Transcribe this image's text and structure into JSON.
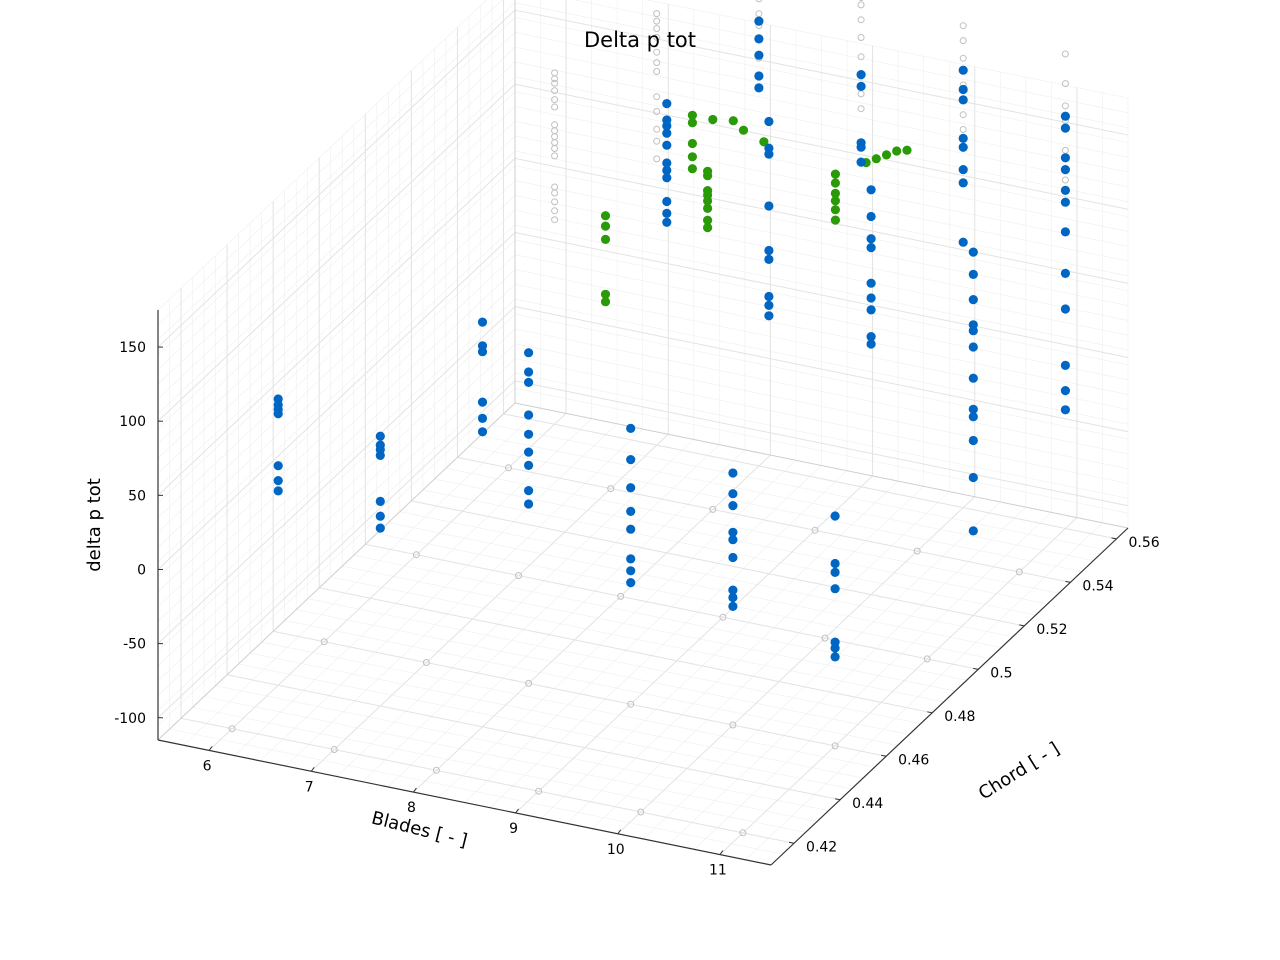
{
  "chart_data": {
    "type": "scatter3d",
    "title": "Delta p tot",
    "xlabel": "Blades [ - ]",
    "ylabel": "Chord [ - ]",
    "zlabel": "delta p tot",
    "xlim": [
      5.5,
      11.5
    ],
    "ylim": [
      0.41,
      0.565
    ],
    "zlim": [
      -115,
      175
    ],
    "x_ticks": [
      "6",
      "7",
      "8",
      "9",
      "10",
      "11"
    ],
    "y_ticks": [
      "0.42",
      "0.44",
      "0.46",
      "0.48",
      "0.5",
      "0.52",
      "0.54",
      "0.56"
    ],
    "z_ticks": [
      "-100",
      "-50",
      "0",
      "50",
      "100",
      "150"
    ],
    "grid": true,
    "colors": {
      "blue": "#0066c4",
      "green": "#2a9a08",
      "gray": "#c0c0c0",
      "gridline": "#e3e3e3"
    },
    "series": [
      {
        "color": "blue",
        "points": [
          [
            6,
            0.44,
            78
          ],
          [
            6,
            0.44,
            74
          ],
          [
            6,
            0.44,
            71
          ],
          [
            6,
            0.44,
            68
          ],
          [
            6,
            0.44,
            33
          ],
          [
            6,
            0.44,
            23
          ],
          [
            6,
            0.44,
            16
          ],
          [
            7,
            0.44,
            67
          ],
          [
            7,
            0.44,
            61
          ],
          [
            7,
            0.44,
            58
          ],
          [
            7,
            0.44,
            54
          ],
          [
            7,
            0.44,
            23
          ],
          [
            7,
            0.44,
            13
          ],
          [
            7,
            0.44,
            5
          ],
          [
            8,
            0.44,
            158
          ],
          [
            8,
            0.44,
            142
          ],
          [
            8,
            0.44,
            138
          ],
          [
            8,
            0.44,
            104
          ],
          [
            8,
            0.44,
            93
          ],
          [
            8,
            0.44,
            84
          ],
          [
            8,
            0.46,
            108
          ],
          [
            8,
            0.46,
            95
          ],
          [
            8,
            0.46,
            88
          ],
          [
            8,
            0.46,
            66
          ],
          [
            8,
            0.46,
            53
          ],
          [
            8,
            0.46,
            41
          ],
          [
            8,
            0.46,
            32
          ],
          [
            8,
            0.46,
            15
          ],
          [
            8,
            0.46,
            6
          ],
          [
            9,
            0.46,
            71
          ],
          [
            9,
            0.46,
            50
          ],
          [
            9,
            0.46,
            31
          ],
          [
            9,
            0.46,
            15
          ],
          [
            9,
            0.46,
            3
          ],
          [
            9,
            0.46,
            -17
          ],
          [
            9,
            0.46,
            -25
          ],
          [
            9,
            0.46,
            -33
          ],
          [
            10,
            0.46,
            55
          ],
          [
            10,
            0.46,
            41
          ],
          [
            10,
            0.46,
            33
          ],
          [
            10,
            0.46,
            15
          ],
          [
            10,
            0.46,
            10
          ],
          [
            10,
            0.46,
            -2
          ],
          [
            10,
            0.46,
            -24
          ],
          [
            10,
            0.46,
            -29
          ],
          [
            10,
            0.46,
            -35
          ],
          [
            11,
            0.46,
            40
          ],
          [
            11,
            0.46,
            8
          ],
          [
            11,
            0.46,
            2
          ],
          [
            11,
            0.46,
            -9
          ],
          [
            11,
            0.46,
            -45
          ],
          [
            11,
            0.46,
            -49
          ],
          [
            11,
            0.46,
            -55
          ],
          [
            8,
            0.52,
            188
          ],
          [
            8,
            0.52,
            177
          ],
          [
            8,
            0.52,
            173
          ],
          [
            8,
            0.52,
            168
          ],
          [
            8,
            0.52,
            160
          ],
          [
            8,
            0.52,
            148
          ],
          [
            8,
            0.52,
            143
          ],
          [
            8,
            0.52,
            138
          ],
          [
            8,
            0.52,
            122
          ],
          [
            8,
            0.52,
            114
          ],
          [
            8,
            0.52,
            108
          ],
          [
            9,
            0.52,
            190
          ],
          [
            9,
            0.52,
            172
          ],
          [
            9,
            0.52,
            168
          ],
          [
            9,
            0.52,
            133
          ],
          [
            9,
            0.52,
            103
          ],
          [
            9,
            0.52,
            97
          ],
          [
            9,
            0.52,
            72
          ],
          [
            9,
            0.52,
            66
          ],
          [
            9,
            0.52,
            59
          ],
          [
            10,
            0.52,
            158
          ],
          [
            10,
            0.52,
            140
          ],
          [
            10,
            0.52,
            125
          ],
          [
            10,
            0.52,
            119
          ],
          [
            10,
            0.52,
            95
          ],
          [
            10,
            0.52,
            85
          ],
          [
            10,
            0.52,
            77
          ],
          [
            10,
            0.52,
            59
          ],
          [
            10,
            0.52,
            54
          ],
          [
            11,
            0.52,
            130
          ],
          [
            11,
            0.52,
            115
          ],
          [
            11,
            0.52,
            98
          ],
          [
            11,
            0.52,
            81
          ],
          [
            11,
            0.52,
            77
          ],
          [
            11,
            0.52,
            66
          ],
          [
            11,
            0.52,
            45
          ],
          [
            11,
            0.52,
            24
          ],
          [
            11,
            0.52,
            19
          ],
          [
            11,
            0.52,
            3
          ],
          [
            11,
            0.52,
            -22
          ],
          [
            11,
            0.52,
            -58
          ],
          [
            8,
            0.56,
            185
          ],
          [
            8,
            0.56,
            173
          ],
          [
            8,
            0.56,
            162
          ],
          [
            8,
            0.56,
            148
          ],
          [
            8,
            0.56,
            140
          ],
          [
            9,
            0.56,
            163
          ],
          [
            9,
            0.56,
            155
          ],
          [
            9,
            0.56,
            117
          ],
          [
            9,
            0.56,
            114
          ],
          [
            9,
            0.56,
            104
          ],
          [
            10,
            0.56,
            180
          ],
          [
            10,
            0.56,
            167
          ],
          [
            10,
            0.56,
            160
          ],
          [
            10,
            0.56,
            134
          ],
          [
            10,
            0.56,
            128
          ],
          [
            10,
            0.56,
            113
          ],
          [
            10,
            0.56,
            104
          ],
          [
            10,
            0.56,
            64
          ],
          [
            11,
            0.56,
            163
          ],
          [
            11,
            0.56,
            155
          ],
          [
            11,
            0.56,
            135
          ],
          [
            11,
            0.56,
            127
          ],
          [
            11,
            0.56,
            113
          ],
          [
            11,
            0.56,
            105
          ],
          [
            11,
            0.56,
            85
          ],
          [
            11,
            0.56,
            57
          ],
          [
            11,
            0.56,
            33
          ],
          [
            11,
            0.56,
            -5
          ],
          [
            11,
            0.56,
            -22
          ],
          [
            11,
            0.56,
            -35
          ]
        ]
      },
      {
        "color": "green",
        "points": [
          [
            7.4,
            0.52,
            104
          ],
          [
            7.4,
            0.52,
            97
          ],
          [
            7.4,
            0.52,
            88
          ],
          [
            7.4,
            0.52,
            51
          ],
          [
            7.4,
            0.52,
            46
          ],
          [
            8.4,
            0.52,
            135
          ],
          [
            8.4,
            0.52,
            132
          ],
          [
            8.4,
            0.52,
            128
          ],
          [
            8.4,
            0.52,
            123
          ],
          [
            8.4,
            0.52,
            115
          ],
          [
            8.4,
            0.52,
            110
          ],
          [
            8.4,
            0.52,
            148
          ],
          [
            8.4,
            0.52,
            145
          ],
          [
            7.8,
            0.54,
            148
          ],
          [
            7.8,
            0.54,
            143
          ],
          [
            7.8,
            0.54,
            129
          ],
          [
            7.8,
            0.54,
            120
          ],
          [
            7.8,
            0.54,
            112
          ],
          [
            8.0,
            0.54,
            148
          ],
          [
            8.2,
            0.54,
            150
          ],
          [
            8.3,
            0.54,
            145
          ],
          [
            8.5,
            0.54,
            140
          ],
          [
            9.2,
            0.54,
            128
          ],
          [
            9.2,
            0.54,
            122
          ],
          [
            9.2,
            0.54,
            115
          ],
          [
            9.2,
            0.54,
            110
          ],
          [
            9.2,
            0.54,
            104
          ],
          [
            9.2,
            0.54,
            97
          ],
          [
            9.5,
            0.54,
            140
          ],
          [
            9.6,
            0.54,
            144
          ],
          [
            9.7,
            0.54,
            148
          ],
          [
            9.8,
            0.54,
            152
          ],
          [
            9.9,
            0.54,
            154
          ]
        ]
      },
      {
        "color": "gray",
        "hollow": true,
        "points": [
          [
            6,
            0.56,
            122
          ],
          [
            6,
            0.56,
            118
          ],
          [
            6,
            0.56,
            115
          ],
          [
            6,
            0.56,
            110
          ],
          [
            6,
            0.56,
            104
          ],
          [
            6,
            0.56,
            99
          ],
          [
            6,
            0.56,
            87
          ],
          [
            6,
            0.56,
            83
          ],
          [
            6,
            0.56,
            79
          ],
          [
            6,
            0.56,
            75
          ],
          [
            6,
            0.56,
            71
          ],
          [
            6,
            0.56,
            66
          ],
          [
            6,
            0.56,
            45
          ],
          [
            6,
            0.56,
            41
          ],
          [
            6,
            0.56,
            35
          ],
          [
            6,
            0.56,
            29
          ],
          [
            6,
            0.56,
            23
          ],
          [
            7,
            0.56,
            176
          ],
          [
            7,
            0.56,
            171
          ],
          [
            7,
            0.56,
            166
          ],
          [
            7,
            0.56,
            160
          ],
          [
            7,
            0.56,
            150
          ],
          [
            7,
            0.56,
            143
          ],
          [
            7,
            0.56,
            137
          ],
          [
            7,
            0.56,
            120
          ],
          [
            7,
            0.56,
            110
          ],
          [
            7,
            0.56,
            98
          ],
          [
            7,
            0.56,
            90
          ],
          [
            7,
            0.56,
            78
          ],
          [
            8,
            0.56,
            210
          ],
          [
            8,
            0.56,
            205
          ],
          [
            8,
            0.56,
            200
          ],
          [
            8,
            0.56,
            190
          ],
          [
            8,
            0.56,
            182
          ],
          [
            8,
            0.56,
            160
          ],
          [
            8,
            0.56,
            148
          ],
          [
            8,
            0.56,
            140
          ],
          [
            9,
            0.56,
            215
          ],
          [
            9,
            0.56,
            210
          ],
          [
            9,
            0.56,
            200
          ],
          [
            9,
            0.56,
            188
          ],
          [
            9,
            0.56,
            175
          ],
          [
            9,
            0.56,
            162
          ],
          [
            9,
            0.56,
            150
          ],
          [
            9,
            0.56,
            140
          ],
          [
            10,
            0.56,
            210
          ],
          [
            10,
            0.56,
            200
          ],
          [
            10,
            0.56,
            188
          ],
          [
            10,
            0.56,
            170
          ],
          [
            10,
            0.56,
            160
          ],
          [
            10,
            0.56,
            150
          ],
          [
            10,
            0.56,
            140
          ],
          [
            11,
            0.56,
            205
          ],
          [
            11,
            0.56,
            185
          ],
          [
            11,
            0.56,
            170
          ],
          [
            11,
            0.56,
            160
          ],
          [
            11,
            0.56,
            140
          ],
          [
            11,
            0.56,
            120
          ],
          [
            6,
            0.42,
            -115
          ],
          [
            7,
            0.42,
            -115
          ],
          [
            8,
            0.42,
            -115
          ],
          [
            9,
            0.42,
            -115
          ],
          [
            10,
            0.42,
            -115
          ],
          [
            11,
            0.42,
            -115
          ],
          [
            6,
            0.46,
            -115
          ],
          [
            7,
            0.46,
            -115
          ],
          [
            8,
            0.46,
            -115
          ],
          [
            9,
            0.46,
            -115
          ],
          [
            10,
            0.46,
            -115
          ],
          [
            11,
            0.46,
            -115
          ],
          [
            6,
            0.5,
            -115
          ],
          [
            7,
            0.5,
            -115
          ],
          [
            8,
            0.5,
            -115
          ],
          [
            9,
            0.5,
            -115
          ],
          [
            10,
            0.5,
            -115
          ],
          [
            11,
            0.5,
            -115
          ],
          [
            6,
            0.54,
            -115
          ],
          [
            7,
            0.54,
            -115
          ],
          [
            8,
            0.54,
            -115
          ],
          [
            9,
            0.54,
            -115
          ],
          [
            10,
            0.54,
            -115
          ],
          [
            11,
            0.54,
            -115
          ]
        ]
      }
    ]
  }
}
